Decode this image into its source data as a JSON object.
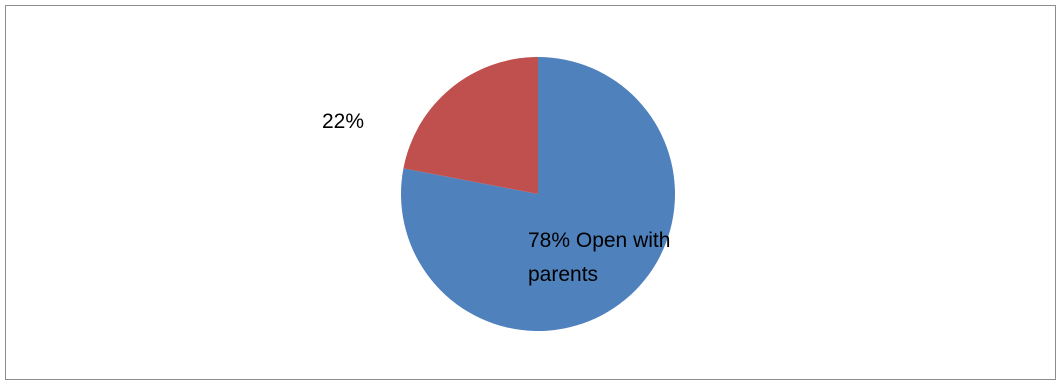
{
  "chart_data": {
    "type": "pie",
    "slices": [
      {
        "value": 78,
        "label_lines": [
          "78% Open with",
          "parents"
        ],
        "color": "#4f81bd"
      },
      {
        "value": 22,
        "label_lines": [
          "22%"
        ],
        "color": "#c0504d"
      }
    ],
    "start_angle_deg": 0,
    "direction": "clockwise"
  }
}
